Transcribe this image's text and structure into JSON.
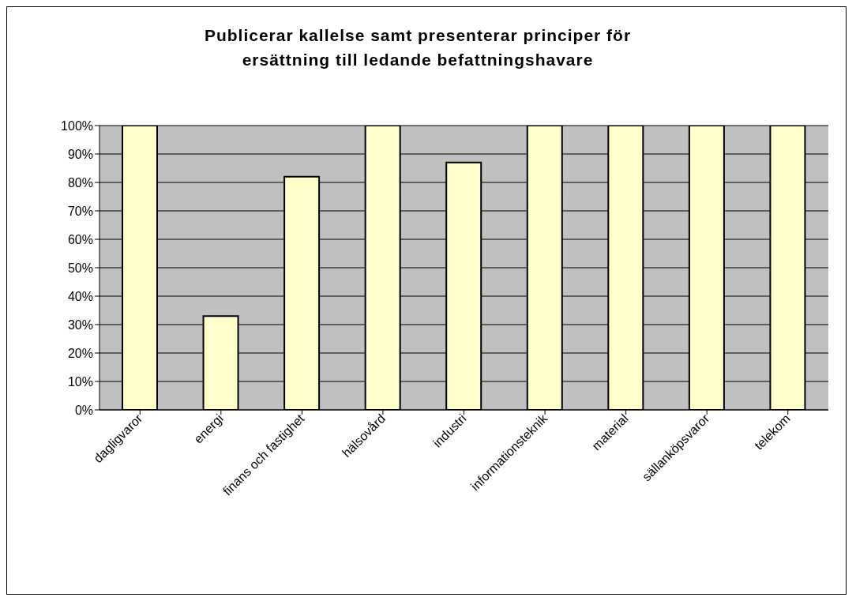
{
  "chart_data": {
    "type": "bar",
    "title": "Publicerar kallelse samt presenterar principer för ersättning till ledande befattningshavare",
    "categories": [
      "dagligvaror",
      "energi",
      "finans och fastighet",
      "hälsovård",
      "industri",
      "informationsteknik",
      "material",
      "sällanköpsvaror",
      "telekom"
    ],
    "values": [
      100,
      33,
      82,
      100,
      87,
      100,
      100,
      100,
      100
    ],
    "color": "#ffffcc",
    "ylim": [
      0,
      100
    ],
    "yticks": [
      {
        "value": 0,
        "label": "0%"
      },
      {
        "value": 10,
        "label": "10%"
      },
      {
        "value": 20,
        "label": "20%"
      },
      {
        "value": 30,
        "label": "30%"
      },
      {
        "value": 40,
        "label": "40%"
      },
      {
        "value": 50,
        "label": "50%"
      },
      {
        "value": 60,
        "label": "60%"
      },
      {
        "value": 70,
        "label": "70%"
      },
      {
        "value": 80,
        "label": "80%"
      },
      {
        "value": 90,
        "label": "90%"
      },
      {
        "value": 100,
        "label": "100%"
      }
    ],
    "grid": "y",
    "legend": false
  }
}
